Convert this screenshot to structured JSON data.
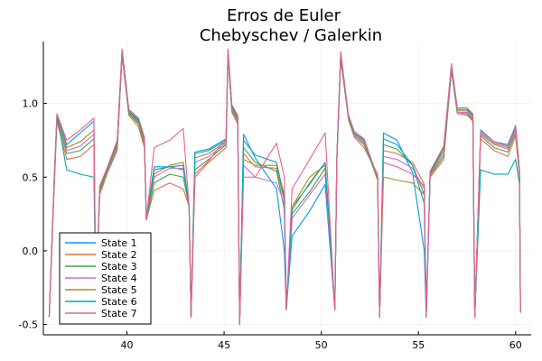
{
  "chart_data": {
    "type": "line",
    "title": "Erros de Euler",
    "subtitle": "Chebyschev / Galerkin",
    "xlabel": "",
    "ylabel": "",
    "xlim": [
      35.7,
      60.8
    ],
    "ylim": [
      -0.57,
      1.42
    ],
    "xticks": [
      40,
      45,
      50,
      55,
      60
    ],
    "yticks": [
      -0.5,
      0.0,
      0.5,
      1.0
    ],
    "xtick_labels": [
      "40",
      "45",
      "50",
      "55",
      "60"
    ],
    "ytick_labels": [
      "-0.5",
      "0.0",
      "0.5",
      "1.0"
    ],
    "grid": true,
    "legend_position": "bottom-left",
    "colors": {
      "state1": "#009AFA",
      "state2": "#E36F47",
      "state3": "#3EA44E",
      "state4": "#C371D2",
      "state5": "#AC8E18",
      "state6": "#00AAAE",
      "state7": "#ED5E93"
    },
    "series": [
      {
        "name": "State 1",
        "color": "#009AFA",
        "x": [
          36.0,
          36.25,
          36.4,
          36.9,
          37.6,
          38.3,
          38.4,
          38.6,
          39.0,
          39.5,
          39.75,
          40.1,
          40.6,
          40.9,
          41.0,
          41.4,
          42.2,
          42.9,
          43.2,
          43.3,
          43.5,
          44.2,
          45.1,
          45.2,
          45.4,
          45.7,
          45.8,
          46.0,
          46.6,
          47.7,
          48.1,
          48.2,
          48.5,
          49.4,
          50.2,
          50.7,
          50.8,
          51.0,
          51.4,
          51.7,
          52.2,
          52.9,
          53.0,
          53.2,
          53.9,
          54.7,
          55.3,
          55.4,
          55.6,
          56.3,
          56.7,
          57.0,
          57.5,
          57.8,
          57.9,
          58.2,
          58.9,
          59.6,
          60.0,
          60.2,
          60.25
        ],
        "y": [
          -0.45,
          0.45,
          0.93,
          0.72,
          0.8,
          0.88,
          -0.35,
          0.42,
          0.55,
          0.74,
          1.36,
          0.95,
          0.89,
          0.75,
          0.21,
          0.57,
          0.57,
          0.55,
          0.3,
          -0.45,
          0.66,
          0.68,
          0.75,
          1.36,
          0.98,
          0.91,
          -0.5,
          0.79,
          0.63,
          0.42,
          0.0,
          -0.4,
          0.1,
          0.27,
          0.45,
          -0.4,
          0.62,
          1.35,
          0.9,
          0.79,
          0.76,
          0.48,
          -0.45,
          0.8,
          0.75,
          0.53,
          0.0,
          -0.45,
          0.52,
          0.7,
          1.26,
          0.96,
          0.96,
          0.92,
          -0.45,
          0.82,
          0.74,
          0.72,
          0.85,
          0.55,
          -0.42
        ]
      },
      {
        "name": "State 2",
        "color": "#E36F47",
        "x": [
          36.0,
          36.25,
          36.4,
          36.9,
          37.6,
          38.3,
          38.4,
          38.6,
          39.0,
          39.5,
          39.75,
          40.1,
          40.6,
          40.9,
          41.0,
          41.4,
          42.2,
          42.9,
          43.2,
          43.3,
          43.5,
          44.2,
          45.1,
          45.2,
          45.4,
          45.7,
          45.8,
          46.0,
          46.6,
          47.7,
          48.1,
          48.2,
          48.5,
          49.4,
          50.2,
          50.7,
          50.8,
          51.0,
          51.4,
          51.7,
          52.2,
          52.9,
          53.0,
          53.2,
          53.9,
          54.7,
          55.3,
          55.4,
          55.6,
          56.3,
          56.7,
          57.0,
          57.5,
          57.8,
          57.9,
          58.2,
          58.9,
          59.6,
          60.0,
          60.2,
          60.25
        ],
        "y": [
          -0.45,
          0.4,
          0.88,
          0.62,
          0.64,
          0.72,
          -0.35,
          0.38,
          0.53,
          0.68,
          1.32,
          0.92,
          0.84,
          0.7,
          0.21,
          0.41,
          0.46,
          0.42,
          0.3,
          -0.45,
          0.5,
          0.6,
          0.7,
          1.32,
          0.94,
          0.86,
          -0.5,
          0.66,
          0.57,
          0.56,
          0.34,
          -0.4,
          0.3,
          0.45,
          0.6,
          -0.4,
          0.6,
          1.3,
          0.89,
          0.77,
          0.7,
          0.52,
          -0.45,
          0.68,
          0.66,
          0.6,
          0.45,
          -0.45,
          0.5,
          0.62,
          1.22,
          0.93,
          0.92,
          0.88,
          -0.45,
          0.76,
          0.68,
          0.64,
          0.78,
          0.5,
          -0.42
        ]
      },
      {
        "name": "State 3",
        "color": "#3EA44E",
        "x": [
          36.0,
          36.25,
          36.4,
          36.9,
          37.6,
          38.3,
          38.4,
          38.6,
          39.0,
          39.5,
          39.75,
          40.1,
          40.6,
          40.9,
          41.0,
          41.4,
          42.2,
          42.9,
          43.2,
          43.3,
          43.5,
          44.2,
          45.1,
          45.2,
          45.4,
          45.7,
          45.8,
          46.0,
          46.6,
          47.7,
          48.1,
          48.2,
          48.5,
          49.4,
          50.2,
          50.7,
          50.8,
          51.0,
          51.4,
          51.7,
          52.2,
          52.9,
          53.0,
          53.2,
          53.9,
          54.7,
          55.3,
          55.4,
          55.6,
          56.3,
          56.7,
          57.0,
          57.5,
          57.8,
          57.9,
          58.2,
          58.9,
          59.6,
          60.0,
          60.2,
          60.25
        ],
        "y": [
          -0.45,
          0.42,
          0.9,
          0.66,
          0.68,
          0.76,
          -0.35,
          0.4,
          0.54,
          0.7,
          1.33,
          0.93,
          0.86,
          0.72,
          0.21,
          0.46,
          0.52,
          0.5,
          0.3,
          -0.45,
          0.55,
          0.62,
          0.72,
          1.33,
          0.95,
          0.88,
          -0.5,
          0.7,
          0.6,
          0.54,
          0.28,
          -0.4,
          0.25,
          0.4,
          0.56,
          -0.4,
          0.61,
          1.31,
          0.9,
          0.78,
          0.72,
          0.5,
          -0.45,
          0.72,
          0.69,
          0.58,
          0.38,
          -0.45,
          0.51,
          0.64,
          1.23,
          0.94,
          0.93,
          0.89,
          -0.45,
          0.78,
          0.7,
          0.67,
          0.8,
          0.51,
          -0.42
        ]
      },
      {
        "name": "State 4",
        "color": "#C371D2",
        "x": [
          36.0,
          36.25,
          36.4,
          36.9,
          37.6,
          38.3,
          38.4,
          38.6,
          39.0,
          39.5,
          39.75,
          40.1,
          40.6,
          40.9,
          41.0,
          41.4,
          42.2,
          42.9,
          43.2,
          43.3,
          43.5,
          44.2,
          45.1,
          45.2,
          45.4,
          45.7,
          45.8,
          46.0,
          46.6,
          47.7,
          48.1,
          48.2,
          48.5,
          49.4,
          50.2,
          50.7,
          50.8,
          51.0,
          51.4,
          51.7,
          52.2,
          52.9,
          53.0,
          53.2,
          53.9,
          54.7,
          55.3,
          55.4,
          55.6,
          56.3,
          56.7,
          57.0,
          57.5,
          57.8,
          57.9,
          58.2,
          58.9,
          59.6,
          60.0,
          60.2,
          60.25
        ],
        "y": [
          -0.45,
          0.43,
          0.9,
          0.68,
          0.71,
          0.79,
          -0.35,
          0.41,
          0.54,
          0.71,
          1.34,
          0.94,
          0.87,
          0.73,
          0.21,
          0.5,
          0.56,
          0.56,
          0.3,
          -0.45,
          0.6,
          0.64,
          0.73,
          1.34,
          0.96,
          0.89,
          -0.5,
          0.58,
          0.5,
          0.46,
          0.32,
          -0.4,
          0.22,
          0.38,
          0.52,
          -0.4,
          0.62,
          1.32,
          0.9,
          0.78,
          0.73,
          0.49,
          -0.45,
          0.64,
          0.62,
          0.56,
          0.42,
          -0.45,
          0.51,
          0.66,
          1.24,
          0.94,
          0.94,
          0.9,
          -0.45,
          0.79,
          0.72,
          0.69,
          0.82,
          0.52,
          -0.42
        ]
      },
      {
        "name": "State 5",
        "color": "#AC8E18",
        "x": [
          36.0,
          36.25,
          36.4,
          36.9,
          37.6,
          38.3,
          38.4,
          38.6,
          39.0,
          39.5,
          39.75,
          40.1,
          40.6,
          40.9,
          41.0,
          41.4,
          42.2,
          42.9,
          43.2,
          43.3,
          43.5,
          44.2,
          45.1,
          45.2,
          45.4,
          45.7,
          45.8,
          46.0,
          46.6,
          47.7,
          48.1,
          48.2,
          48.5,
          49.4,
          50.2,
          50.7,
          50.8,
          51.0,
          51.4,
          51.7,
          52.2,
          52.9,
          53.0,
          53.2,
          53.9,
          54.7,
          55.3,
          55.4,
          55.6,
          56.3,
          56.7,
          57.0,
          57.5,
          57.8,
          57.9,
          58.2,
          58.9,
          59.6,
          60.0,
          60.2,
          60.25
        ],
        "y": [
          -0.45,
          0.44,
          0.91,
          0.7,
          0.74,
          0.82,
          -0.35,
          0.41,
          0.55,
          0.72,
          1.35,
          0.94,
          0.87,
          0.74,
          0.21,
          0.52,
          0.58,
          0.6,
          0.3,
          -0.45,
          0.63,
          0.66,
          0.74,
          1.35,
          0.97,
          0.9,
          -0.5,
          0.62,
          0.58,
          0.58,
          0.38,
          -0.4,
          0.3,
          0.5,
          0.58,
          -0.4,
          0.62,
          1.33,
          0.9,
          0.79,
          0.74,
          0.48,
          -0.45,
          0.5,
          0.48,
          0.46,
          0.38,
          -0.45,
          0.52,
          0.68,
          1.25,
          0.95,
          0.95,
          0.91,
          -0.45,
          0.8,
          0.73,
          0.7,
          0.83,
          0.53,
          -0.42
        ]
      },
      {
        "name": "State 6",
        "color": "#00AAAE",
        "x": [
          36.0,
          36.25,
          36.4,
          36.9,
          37.6,
          38.3,
          38.4,
          38.6,
          39.0,
          39.5,
          39.75,
          40.1,
          40.6,
          40.9,
          41.0,
          41.4,
          42.2,
          42.9,
          43.2,
          43.3,
          43.5,
          44.2,
          45.1,
          45.2,
          45.4,
          45.7,
          45.8,
          46.0,
          46.6,
          47.7,
          48.1,
          48.2,
          48.5,
          49.4,
          50.2,
          50.7,
          50.8,
          51.0,
          51.4,
          51.7,
          52.2,
          52.9,
          53.0,
          53.2,
          53.9,
          54.7,
          55.3,
          55.4,
          55.6,
          56.3,
          56.7,
          57.0,
          57.5,
          57.8,
          57.9,
          58.2,
          58.9,
          59.6,
          60.0,
          60.2,
          60.25
        ],
        "y": [
          -0.45,
          0.46,
          0.92,
          0.55,
          0.52,
          0.5,
          -0.35,
          0.43,
          0.56,
          0.74,
          1.36,
          0.95,
          0.88,
          0.76,
          0.21,
          0.55,
          0.57,
          0.58,
          0.3,
          -0.45,
          0.67,
          0.69,
          0.76,
          1.36,
          0.98,
          0.91,
          -0.5,
          0.75,
          0.65,
          0.6,
          0.35,
          -0.4,
          0.28,
          0.46,
          0.6,
          -0.4,
          0.63,
          1.34,
          0.91,
          0.8,
          0.75,
          0.49,
          -0.45,
          0.76,
          0.72,
          0.58,
          0.32,
          -0.45,
          0.53,
          0.7,
          1.26,
          0.96,
          0.96,
          0.92,
          -0.45,
          0.55,
          0.52,
          0.52,
          0.62,
          0.45,
          -0.42
        ]
      },
      {
        "name": "State 7",
        "color": "#ED5E93",
        "x": [
          36.0,
          36.25,
          36.4,
          36.9,
          37.6,
          38.3,
          38.4,
          38.6,
          39.0,
          39.5,
          39.75,
          40.1,
          40.6,
          40.9,
          41.0,
          41.4,
          42.2,
          42.9,
          43.2,
          43.3,
          43.5,
          44.2,
          45.1,
          45.2,
          45.4,
          45.7,
          45.8,
          46.0,
          46.6,
          47.7,
          48.1,
          48.2,
          48.5,
          49.4,
          50.2,
          50.7,
          50.8,
          51.0,
          51.4,
          51.7,
          52.2,
          52.9,
          53.0,
          53.2,
          53.9,
          54.7,
          55.3,
          55.4,
          55.6,
          56.3,
          56.7,
          57.0,
          57.5,
          57.8,
          57.9,
          58.2,
          58.9,
          59.6,
          60.0,
          60.2,
          60.25
        ],
        "y": [
          -0.45,
          0.47,
          0.93,
          0.75,
          0.82,
          0.9,
          -0.35,
          0.44,
          0.57,
          0.75,
          1.37,
          0.96,
          0.9,
          0.77,
          0.21,
          0.7,
          0.75,
          0.83,
          0.3,
          -0.45,
          0.52,
          0.61,
          0.76,
          1.37,
          0.99,
          0.92,
          -0.5,
          0.5,
          0.5,
          0.73,
          0.5,
          -0.4,
          0.42,
          0.62,
          0.8,
          -0.4,
          0.64,
          1.35,
          0.92,
          0.81,
          0.76,
          0.5,
          -0.45,
          0.6,
          0.57,
          0.52,
          0.44,
          -0.45,
          0.54,
          0.71,
          1.27,
          0.97,
          0.97,
          0.93,
          -0.45,
          0.81,
          0.74,
          0.71,
          0.84,
          0.54,
          -0.42
        ]
      }
    ]
  }
}
